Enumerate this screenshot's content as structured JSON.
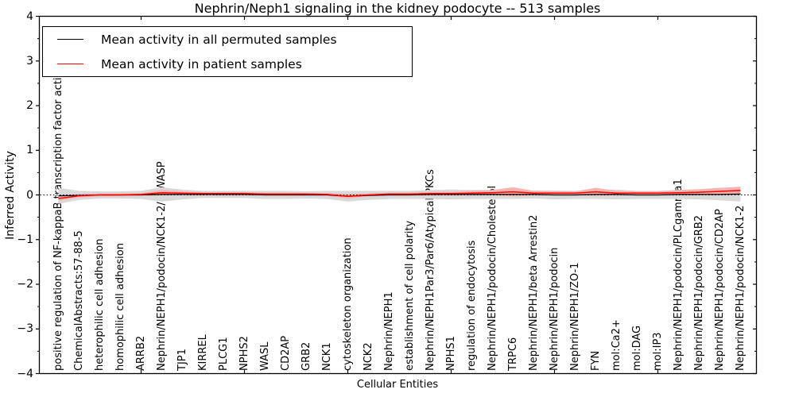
{
  "title": "Nephrin/Neph1 signaling in the kidney podocyte -- 513 samples",
  "legend": {
    "items": [
      {
        "label": "Mean activity in all permuted samples",
        "color": "#000000"
      },
      {
        "label": "Mean activity in patient samples",
        "color": "#ff0000"
      }
    ]
  },
  "chart_data": {
    "type": "line",
    "title": "Nephrin/Neph1 signaling in the kidney podocyte -- 513 samples",
    "xlabel": "Cellular Entities",
    "ylabel": "Inferred Activity",
    "ylim": [
      -4,
      4
    ],
    "yticks": [
      4,
      3,
      2,
      1,
      0,
      -1,
      -2,
      -3,
      -4
    ],
    "xtick_positions": [
      4,
      9,
      14,
      19,
      24,
      29
    ],
    "grid": false,
    "legend_position": "upper left",
    "zero_line": {
      "value": 0,
      "style": "dotted",
      "color": "#000000"
    },
    "categories": [
      "positive regulation of NF-kappaB transcription factor activity",
      "ChemicalAbstracts:57-88-5",
      "heterophilic cell adhesion",
      "homophilic cell adhesion",
      "ARRB2",
      "Nephrin/NEPH1/podocin/NCK1-2/N-WASP",
      "TJP1",
      "KIRREL",
      "PLCG1",
      "NPHS2",
      "WASL",
      "CD2AP",
      "GRB2",
      "NCK1",
      "cytoskeleton organization",
      "NCK2",
      "Nephrin/NEPH1",
      "establishment of cell polarity",
      "Nephrin/NEPH1Par3/Par6/Atypical PKCs",
      "NPHS1",
      "regulation of endocytosis",
      "Nephrin/NEPH1/podocin/Cholesterol",
      "TRPC6",
      "Nephrin/NEPH1/beta Arrestin2",
      "Nephrin/NEPH1/podocin",
      "Nephrin/NEPH1/ZO-1",
      "FYN",
      "mol:Ca2+",
      "mol:DAG",
      "mol:IP3",
      "Nephrin/NEPH1/podocin/PLCgamma1",
      "Nephrin/NEPH1/podocin/GRB2",
      "Nephrin/NEPH1/podocin/CD2AP",
      "Nephrin/NEPH1/podocin/NCK1-2"
    ],
    "series": [
      {
        "name": "Mean activity in all permuted samples",
        "color": "#000000",
        "band_color": "#d9d9d9",
        "values": [
          -0.02,
          -0.01,
          0,
          0,
          0,
          0.01,
          0.01,
          0.01,
          0.01,
          0.01,
          0,
          0,
          0,
          0,
          -0.03,
          -0.01,
          0,
          0,
          0.01,
          0.01,
          0.01,
          0.01,
          0.01,
          0.01,
          0,
          0,
          0.01,
          0.01,
          0,
          0,
          0.01,
          0.01,
          0.01,
          0.02
        ],
        "band": [
          0.18,
          0.1,
          0.08,
          0.08,
          0.09,
          0.16,
          0.11,
          0.08,
          0.08,
          0.08,
          0.09,
          0.09,
          0.08,
          0.09,
          0.12,
          0.1,
          0.09,
          0.09,
          0.1,
          0.11,
          0.1,
          0.1,
          0.1,
          0.09,
          0.1,
          0.09,
          0.1,
          0.11,
          0.09,
          0.09,
          0.1,
          0.11,
          0.13,
          0.17
        ]
      },
      {
        "name": "Mean activity in patient samples",
        "color": "#ff0000",
        "band_color": "#f5b4b0",
        "values": [
          -0.08,
          -0.02,
          0,
          0,
          0.01,
          0.05,
          0.04,
          0.03,
          0.03,
          0.03,
          0.02,
          0.02,
          0.02,
          0.01,
          -0.03,
          0,
          0.02,
          0.02,
          0.03,
          0.03,
          0.04,
          0.05,
          0.07,
          0.04,
          0.04,
          0.04,
          0.07,
          0.04,
          0.04,
          0.04,
          0.05,
          0.06,
          0.08,
          0.1
        ],
        "band": [
          0.05,
          0.04,
          0.03,
          0.03,
          0.03,
          0.06,
          0.04,
          0.03,
          0.03,
          0.03,
          0.03,
          0.03,
          0.03,
          0.03,
          0.05,
          0.03,
          0.03,
          0.03,
          0.04,
          0.04,
          0.05,
          0.06,
          0.1,
          0.05,
          0.04,
          0.04,
          0.09,
          0.05,
          0.04,
          0.04,
          0.06,
          0.07,
          0.08,
          0.08
        ]
      }
    ]
  }
}
